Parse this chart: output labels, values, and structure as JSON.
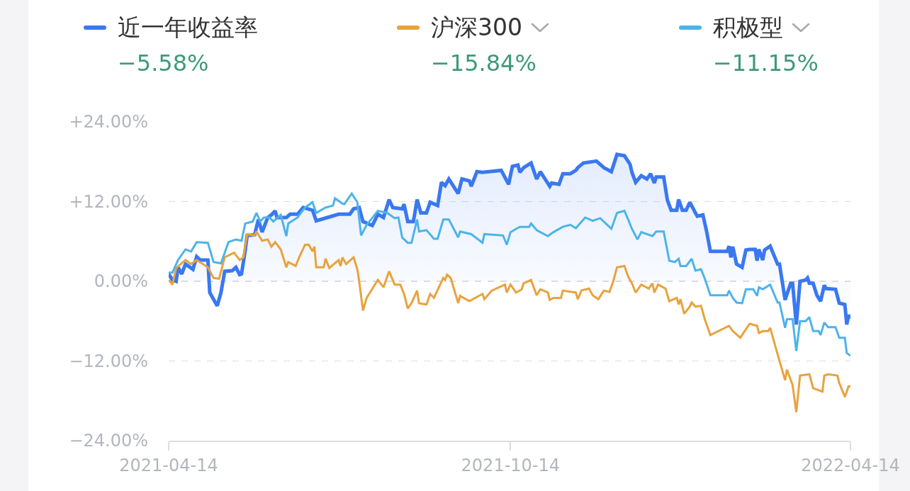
{
  "chart_data": {
    "type": "line",
    "annotations": [
      "−5.58%",
      "−15.84%",
      "−11.15%"
    ],
    "xlim": [
      "2021-04-14",
      "2022-04-14"
    ],
    "xticks": [
      {
        "value": "2021-04-14",
        "label": "2021-04-14"
      },
      {
        "value": "2021-10-14",
        "label": "2021-10-14"
      },
      {
        "value": "2022-04-14",
        "label": "2022-04-14"
      }
    ],
    "ylim": [
      -24,
      24
    ],
    "yticks": [
      {
        "value": 24,
        "label": "+24.00%"
      },
      {
        "value": 12,
        "label": "+12.00%"
      },
      {
        "value": 0,
        "label": "0.00%"
      },
      {
        "value": -12,
        "label": "−12.00%"
      },
      {
        "value": -24,
        "label": "−24.00%"
      }
    ],
    "grid": "y",
    "legend": "top",
    "series": [
      {
        "name": "近一年收益率",
        "type": "area",
        "color": "#3a78f0",
        "x": [
          "2021-04-14",
          "2021-04-16",
          "2021-04-18",
          "2021-04-19",
          "2021-04-21",
          "2021-04-23",
          "2021-04-27",
          "2021-04-29",
          "2021-05-01",
          "2021-05-05",
          "2021-05-06",
          "2021-05-10",
          "2021-05-12",
          "2021-05-14",
          "2021-05-18",
          "2021-05-20",
          "2021-05-22",
          "2021-05-23",
          "2021-05-25",
          "2021-05-26",
          "2021-05-30",
          "2021-06-01",
          "2021-06-03",
          "2021-06-06",
          "2021-06-08",
          "2021-06-10",
          "2021-06-11",
          "2021-06-16",
          "2021-06-18",
          "2021-06-22",
          "2021-06-25",
          "2021-06-30",
          "2021-07-02",
          "2021-07-08",
          "2021-07-14",
          "2021-07-20",
          "2021-07-22",
          "2021-07-25",
          "2021-07-27",
          "2021-08-01",
          "2021-08-04",
          "2021-08-07",
          "2021-08-10",
          "2021-08-12",
          "2021-08-17",
          "2021-08-18",
          "2021-08-20",
          "2021-08-23",
          "2021-08-25",
          "2021-08-27",
          "2021-08-30",
          "2021-09-01",
          "2021-09-05",
          "2021-09-07",
          "2021-09-09",
          "2021-09-11",
          "2021-09-16",
          "2021-09-18",
          "2021-09-22",
          "2021-09-23",
          "2021-09-26",
          "2021-09-29",
          "2021-10-09",
          "2021-10-13",
          "2021-10-15",
          "2021-10-18",
          "2021-10-19",
          "2021-10-21",
          "2021-10-25",
          "2021-10-28",
          "2021-10-30",
          "2021-11-04",
          "2021-11-05",
          "2021-11-09",
          "2021-11-11",
          "2021-11-15",
          "2021-11-18",
          "2021-11-19",
          "2021-11-22",
          "2021-11-29",
          "2021-12-03",
          "2021-12-07",
          "2021-12-10",
          "2021-12-14",
          "2021-12-17",
          "2021-12-18",
          "2021-12-20",
          "2021-12-23",
          "2021-12-26",
          "2021-12-28",
          "2021-12-30",
          "2021-12-31",
          "2022-01-04",
          "2022-01-06",
          "2022-01-08",
          "2022-01-11",
          "2022-01-12",
          "2022-01-14",
          "2022-01-16",
          "2022-01-18",
          "2022-01-21",
          "2022-01-22",
          "2022-01-25",
          "2022-01-27",
          "2022-01-29",
          "2022-02-07",
          "2022-02-08",
          "2022-02-09",
          "2022-02-10",
          "2022-02-12",
          "2022-02-15",
          "2022-02-17",
          "2022-02-19",
          "2022-02-22",
          "2022-02-23",
          "2022-02-24",
          "2022-02-26",
          "2022-02-27",
          "2022-03-02",
          "2022-03-06",
          "2022-03-07",
          "2022-03-10",
          "2022-03-13",
          "2022-03-14",
          "2022-03-16",
          "2022-03-18",
          "2022-03-21",
          "2022-03-22",
          "2022-03-23",
          "2022-03-25",
          "2022-03-27",
          "2022-03-29",
          "2022-03-31",
          "2022-04-01",
          "2022-04-06",
          "2022-04-08",
          "2022-04-11",
          "2022-04-12",
          "2022-04-13",
          "2022-04-14"
        ],
        "values": [
          1.1,
          0.2,
          0,
          2.1,
          1.1,
          2.6,
          1.8,
          3.7,
          3.2,
          3.2,
          -1.7,
          -3.7,
          -1.7,
          1.5,
          1.6,
          2.1,
          1.0,
          1.1,
          4.7,
          6.9,
          7.0,
          9.3,
          7.4,
          9.6,
          10.0,
          10.6,
          9.6,
          9.6,
          10.1,
          10.1,
          11.1,
          10.7,
          9.1,
          9.6,
          10.1,
          10.1,
          10.9,
          11.1,
          9.0,
          8.4,
          10.1,
          9.6,
          12.3,
          11.1,
          10.9,
          11.6,
          9.0,
          9.0,
          12.3,
          10.3,
          10.3,
          11.9,
          11.4,
          14.9,
          14.4,
          15.4,
          13.2,
          15.4,
          15.1,
          14.3,
          16.5,
          16.4,
          16.7,
          14.6,
          17.3,
          17.5,
          16.4,
          17.1,
          17.8,
          15.4,
          16.5,
          14.3,
          14.8,
          14.6,
          16.2,
          16.2,
          16.7,
          17.1,
          17.8,
          18.1,
          17.1,
          16.5,
          19.1,
          18.9,
          17.6,
          16.4,
          14.9,
          15.9,
          15.4,
          16.2,
          14.8,
          15.7,
          15.7,
          12.2,
          10.7,
          10.7,
          12.3,
          10.7,
          10.7,
          11.9,
          10.3,
          9.8,
          10.0,
          7.5,
          4.5,
          4.5,
          5.3,
          3.6,
          5.2,
          2.6,
          2.1,
          4.7,
          4.8,
          4.8,
          3.1,
          4.8,
          3.2,
          4.7,
          5.3,
          2.6,
          2.6,
          -2.8,
          -0.3,
          -0.3,
          -6.5,
          0,
          0.2,
          0.5,
          -0.3,
          -0.3,
          -2.1,
          -3.0,
          -0.6,
          -1.1,
          -1.2,
          -3.3,
          -3.5,
          -6.5,
          -5.1,
          -5.6
        ]
      },
      {
        "name": "沪深300",
        "color": "#e8a33d",
        "x": [
          "2021-04-14",
          "2021-04-16",
          "2021-04-18",
          "2021-04-23",
          "2021-04-26",
          "2021-04-29",
          "2021-05-05",
          "2021-05-08",
          "2021-05-11",
          "2021-05-14",
          "2021-05-19",
          "2021-05-22",
          "2021-05-24",
          "2021-05-26",
          "2021-05-30",
          "2021-05-31",
          "2021-06-03",
          "2021-06-06",
          "2021-06-08",
          "2021-06-10",
          "2021-06-13",
          "2021-06-16",
          "2021-06-17",
          "2021-06-21",
          "2021-06-23",
          "2021-06-26",
          "2021-06-28",
          "2021-06-30",
          "2021-07-01",
          "2021-07-02",
          "2021-07-06",
          "2021-07-07",
          "2021-07-09",
          "2021-07-14",
          "2021-07-15",
          "2021-07-16",
          "2021-07-18",
          "2021-07-22",
          "2021-07-24",
          "2021-07-25",
          "2021-07-27",
          "2021-07-29",
          "2021-08-02",
          "2021-08-04",
          "2021-08-07",
          "2021-08-10",
          "2021-08-13",
          "2021-08-16",
          "2021-08-18",
          "2021-08-20",
          "2021-08-22",
          "2021-08-25",
          "2021-08-26",
          "2021-08-30",
          "2021-09-01",
          "2021-09-03",
          "2021-09-08",
          "2021-09-09",
          "2021-09-10",
          "2021-09-12",
          "2021-09-16",
          "2021-09-17",
          "2021-09-22",
          "2021-09-29",
          "2021-09-30",
          "2021-10-04",
          "2021-10-11",
          "2021-10-12",
          "2021-10-14",
          "2021-10-17",
          "2021-10-20",
          "2021-10-21",
          "2021-10-25",
          "2021-10-28",
          "2021-10-30",
          "2021-11-03",
          "2021-11-04",
          "2021-11-06",
          "2021-11-10",
          "2021-11-11",
          "2021-11-18",
          "2021-11-19",
          "2021-11-21",
          "2021-11-25",
          "2021-11-27",
          "2021-11-30",
          "2021-12-03",
          "2021-12-06",
          "2021-12-08",
          "2021-12-10",
          "2021-12-14",
          "2021-12-16",
          "2021-12-18",
          "2021-12-20",
          "2021-12-23",
          "2021-12-27",
          "2021-12-29",
          "2021-12-30",
          "2022-01-01",
          "2022-01-05",
          "2022-01-07",
          "2022-01-11",
          "2022-01-12",
          "2022-01-13",
          "2022-01-15",
          "2022-01-18",
          "2022-01-19",
          "2022-01-21",
          "2022-01-24",
          "2022-01-26",
          "2022-01-29",
          "2022-02-08",
          "2022-02-10",
          "2022-02-14",
          "2022-02-19",
          "2022-02-23",
          "2022-02-24",
          "2022-02-26",
          "2022-03-01",
          "2022-03-02",
          "2022-03-06",
          "2022-03-10",
          "2022-03-11",
          "2022-03-14",
          "2022-03-16",
          "2022-03-18",
          "2022-03-23",
          "2022-03-25",
          "2022-03-30",
          "2022-03-31",
          "2022-04-02",
          "2022-04-07",
          "2022-04-08",
          "2022-04-11",
          "2022-04-13",
          "2022-04-14"
        ],
        "values": [
          0.2,
          -0.5,
          2.0,
          3.2,
          2.6,
          3.2,
          2.1,
          0.5,
          0.4,
          3.6,
          4.3,
          3.2,
          3.6,
          7.1,
          6.9,
          7.5,
          6.1,
          6.3,
          5.2,
          5.9,
          4.8,
          2.1,
          2.9,
          2.3,
          3.7,
          5.5,
          5.5,
          4.5,
          5.2,
          2.1,
          2.1,
          3.4,
          2.0,
          3.2,
          2.3,
          3.6,
          2.6,
          3.6,
          1.8,
          0,
          -4.4,
          -2.5,
          -0.7,
          0.2,
          -0.9,
          1.5,
          -0.5,
          -0.5,
          -1.9,
          -4.1,
          -3.3,
          -1.4,
          -3.3,
          -3.5,
          -1.9,
          -2.5,
          0.5,
          0.2,
          1.0,
          0.5,
          -3.3,
          -2.2,
          -3.0,
          -1.9,
          -2.7,
          -1.4,
          -0.5,
          -1.7,
          -0.5,
          -1.7,
          -1.2,
          -0.3,
          0.2,
          -2.1,
          -1.2,
          -1.7,
          -2.8,
          -2.5,
          -2.5,
          -1.4,
          -1.7,
          -2.7,
          -1.4,
          -1.1,
          -2.1,
          -2.7,
          -1.4,
          -1.6,
          0,
          2.1,
          2.3,
          0.7,
          -0.3,
          -1.7,
          -0.5,
          -1.1,
          -0.3,
          -1.7,
          -0.5,
          -1.1,
          -3.0,
          -2.5,
          -3.5,
          -2.7,
          -4.9,
          -3.8,
          -3.2,
          -3.8,
          -3.7,
          -5.7,
          -8.1,
          -6.7,
          -7.5,
          -8.5,
          -6.4,
          -6.7,
          -7.8,
          -7.5,
          -7.5,
          -7.0,
          -11.0,
          -14.9,
          -13.3,
          -15.6,
          -19.7,
          -14.2,
          -14.0,
          -16.1,
          -16.6,
          -14.2,
          -14.0,
          -14.2,
          -15.3,
          -17.4,
          -15.8,
          -15.8
        ]
      },
      {
        "name": "积极型",
        "color": "#4db3ea",
        "x": [
          "2021-04-14",
          "2021-04-16",
          "2021-04-19",
          "2021-04-23",
          "2021-04-26",
          "2021-04-29",
          "2021-05-05",
          "2021-05-08",
          "2021-05-12",
          "2021-05-16",
          "2021-05-20",
          "2021-05-23",
          "2021-05-25",
          "2021-05-29",
          "2021-05-31",
          "2021-06-02",
          "2021-06-04",
          "2021-06-07",
          "2021-06-09",
          "2021-06-13",
          "2021-06-16",
          "2021-06-17",
          "2021-06-22",
          "2021-06-26",
          "2021-06-30",
          "2021-07-02",
          "2021-07-07",
          "2021-07-11",
          "2021-07-12",
          "2021-07-16",
          "2021-07-17",
          "2021-07-21",
          "2021-07-24",
          "2021-07-26",
          "2021-07-29",
          "2021-08-04",
          "2021-08-09",
          "2021-08-13",
          "2021-08-15",
          "2021-08-17",
          "2021-08-20",
          "2021-08-22",
          "2021-08-25",
          "2021-08-26",
          "2021-08-30",
          "2021-09-03",
          "2021-09-05",
          "2021-09-08",
          "2021-09-11",
          "2021-09-16",
          "2021-09-17",
          "2021-09-23",
          "2021-09-29",
          "2021-09-30",
          "2021-10-10",
          "2021-10-12",
          "2021-10-14",
          "2021-10-17",
          "2021-10-19",
          "2021-10-24",
          "2021-10-25",
          "2021-10-28",
          "2021-11-03",
          "2021-11-06",
          "2021-11-11",
          "2021-11-15",
          "2021-11-18",
          "2021-11-23",
          "2021-11-27",
          "2021-12-01",
          "2021-12-07",
          "2021-12-10",
          "2021-12-14",
          "2021-12-16",
          "2021-12-18",
          "2021-12-21",
          "2021-12-23",
          "2021-12-29",
          "2021-12-31",
          "2022-01-04",
          "2022-01-07",
          "2022-01-10",
          "2022-01-12",
          "2022-01-13",
          "2022-01-16",
          "2022-01-19",
          "2022-01-21",
          "2022-01-24",
          "2022-01-26",
          "2022-01-29",
          "2022-02-07",
          "2022-02-08",
          "2022-02-10",
          "2022-02-12",
          "2022-02-15",
          "2022-02-17",
          "2022-02-21",
          "2022-02-23",
          "2022-02-24",
          "2022-02-26",
          "2022-03-02",
          "2022-03-06",
          "2022-03-07",
          "2022-03-10",
          "2022-03-11",
          "2022-03-14",
          "2022-03-16",
          "2022-03-18",
          "2022-03-21",
          "2022-03-23",
          "2022-03-25",
          "2022-03-28",
          "2022-03-29",
          "2022-03-31",
          "2022-04-02",
          "2022-04-06",
          "2022-04-08",
          "2022-04-11",
          "2022-04-12",
          "2022-04-14"
        ],
        "values": [
          1.3,
          1.3,
          3.2,
          4.8,
          4.5,
          5.9,
          5.8,
          2.9,
          2.7,
          5.9,
          6.3,
          6.1,
          8.7,
          9.0,
          10.3,
          9.0,
          9.6,
          9.6,
          9.0,
          10.0,
          6.8,
          8.7,
          9.6,
          11.1,
          11.9,
          10.3,
          11.1,
          11.4,
          12.5,
          11.7,
          11.6,
          13.2,
          11.9,
          6.9,
          8.5,
          10.6,
          10.3,
          9.5,
          9.6,
          6.6,
          5.8,
          5.8,
          9.3,
          7.5,
          7.7,
          6.4,
          6.4,
          9.3,
          9.3,
          6.6,
          7.5,
          7.1,
          5.8,
          7.1,
          6.9,
          5.5,
          7.4,
          7.9,
          8.2,
          8.2,
          8.7,
          7.7,
          6.8,
          7.4,
          8.2,
          8.5,
          8.0,
          9.6,
          9.1,
          9.5,
          7.9,
          10.3,
          10.6,
          9.3,
          7.9,
          6.3,
          7.4,
          6.8,
          7.5,
          7.5,
          3.1,
          2.9,
          3.4,
          2.3,
          2.3,
          3.4,
          1.6,
          1.8,
          0.4,
          -2.1,
          -2.1,
          -1.4,
          -2.5,
          -3.2,
          -3.3,
          -1.2,
          -1.2,
          -2.2,
          -0.9,
          -1.2,
          -0.5,
          -3.2,
          -3.2,
          -7.0,
          -5.7,
          -5.7,
          -10.5,
          -6.0,
          -6.0,
          -5.4,
          -7.5,
          -7.5,
          -8.1,
          -6.2,
          -6.9,
          -6.9,
          -8.5,
          -8.5,
          -10.8,
          -11.2
        ]
      }
    ]
  }
}
